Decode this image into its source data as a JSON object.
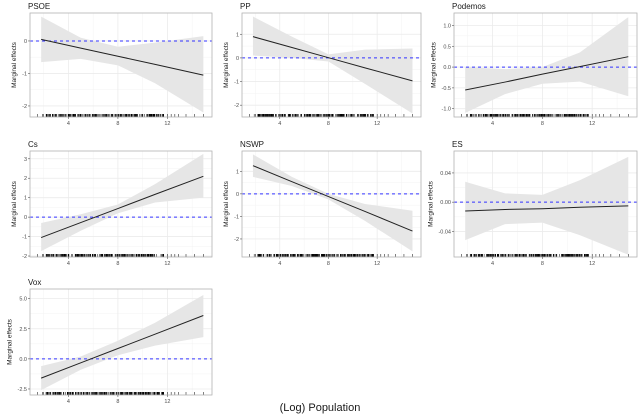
{
  "chart_data": {
    "type": "line",
    "xlabel": "(Log) Population",
    "ylabel": "Marginal effects",
    "xticks": [
      4,
      8,
      12
    ],
    "xlim": [
      0.9,
      15.6
    ],
    "grid": true,
    "colors": {
      "line": "#222222",
      "ribbon": "#e6e6e6",
      "zero_line": "#3333ff",
      "rug": "#000000"
    },
    "panels": [
      {
        "title": "PSOE",
        "ylim": [
          -2.34,
          0.86
        ],
        "yticks": [
          "0",
          "-1",
          "-2"
        ],
        "ytick_values": [
          0,
          -1,
          -2
        ],
        "x": [
          1.8,
          5,
          8,
          11,
          14.9
        ],
        "fit": [
          0.05,
          -0.22,
          -0.47,
          -0.72,
          -1.05
        ],
        "upper": [
          0.75,
          0.1,
          -0.18,
          -0.05,
          0.15
        ],
        "lower": [
          -0.65,
          -0.55,
          -0.75,
          -1.3,
          -2.2
        ]
      },
      {
        "title": "PP",
        "ylim": [
          -2.5,
          1.9
        ],
        "yticks": [
          "1",
          "0",
          "-1",
          "-2"
        ],
        "ytick_values": [
          1,
          0,
          -1,
          -2
        ],
        "x": [
          1.8,
          5,
          8,
          11,
          14.9
        ],
        "fit": [
          0.9,
          0.44,
          0.01,
          -0.42,
          -0.97
        ],
        "upper": [
          1.75,
          0.9,
          0.15,
          0.35,
          0.4
        ],
        "lower": [
          0.1,
          0.0,
          -0.15,
          -1.1,
          -2.35
        ]
      },
      {
        "title": "Podemos",
        "ylim": [
          -1.2,
          1.3
        ],
        "yticks": [
          "1.0",
          "0.5",
          "0.0",
          "-0.5",
          "-1.0"
        ],
        "ytick_values": [
          1,
          0.5,
          0,
          -0.5,
          -1
        ],
        "x": [
          1.8,
          5,
          8,
          11,
          14.9
        ],
        "fit": [
          -0.55,
          -0.36,
          -0.17,
          0.01,
          0.25
        ],
        "upper": [
          0.0,
          -0.05,
          0.0,
          0.35,
          1.2
        ],
        "lower": [
          -1.1,
          -0.65,
          -0.4,
          -0.35,
          -0.7
        ]
      },
      {
        "title": "Cs",
        "ylim": [
          -2.05,
          3.4
        ],
        "yticks": [
          "3",
          "2",
          "1",
          "0",
          "-1",
          "-2"
        ],
        "ytick_values": [
          3,
          2,
          1,
          0,
          -1,
          -2
        ],
        "x": [
          1.8,
          5,
          8,
          11,
          14.9
        ],
        "fit": [
          -1.05,
          -0.28,
          0.44,
          1.17,
          2.1
        ],
        "upper": [
          -0.3,
          0.15,
          0.65,
          1.7,
          3.25
        ],
        "lower": [
          -1.75,
          -0.7,
          0.2,
          0.75,
          1.0
        ]
      },
      {
        "title": "NSWP",
        "ylim": [
          -2.8,
          1.9
        ],
        "yticks": [
          "1",
          "0",
          "-1",
          "-2"
        ],
        "ytick_values": [
          1,
          0,
          -1,
          -2
        ],
        "x": [
          1.8,
          5,
          8,
          11,
          14.9
        ],
        "fit": [
          1.25,
          0.54,
          -0.12,
          -0.78,
          -1.65
        ],
        "upper": [
          1.75,
          0.75,
          0.0,
          -0.45,
          -0.75
        ],
        "lower": [
          0.75,
          0.35,
          -0.25,
          -1.2,
          -2.55
        ]
      },
      {
        "title": "ES",
        "ylim": [
          -0.075,
          0.07
        ],
        "yticks": [
          "0.04",
          "0.00",
          "-0.04"
        ],
        "ytick_values": [
          0.04,
          0,
          -0.04
        ],
        "x": [
          1.8,
          5,
          8,
          11,
          14.9
        ],
        "fit": [
          -0.012,
          -0.01,
          -0.009,
          -0.007,
          -0.005
        ],
        "upper": [
          0.028,
          0.012,
          0.01,
          0.03,
          0.062
        ],
        "lower": [
          -0.052,
          -0.03,
          -0.028,
          -0.045,
          -0.072
        ]
      },
      {
        "title": "Vox",
        "ylim": [
          -3.0,
          5.8
        ],
        "yticks": [
          "5.0",
          "2.5",
          "0.0",
          "-2.5"
        ],
        "ytick_values": [
          5,
          2.5,
          0,
          -2.5
        ],
        "x": [
          1.8,
          5,
          8,
          11,
          14.9
        ],
        "fit": [
          -1.6,
          -0.33,
          0.86,
          2.05,
          3.6
        ],
        "upper": [
          -0.6,
          0.2,
          1.5,
          3.0,
          5.3
        ],
        "lower": [
          -2.6,
          -0.9,
          0.3,
          1.1,
          1.8
        ]
      }
    ]
  }
}
